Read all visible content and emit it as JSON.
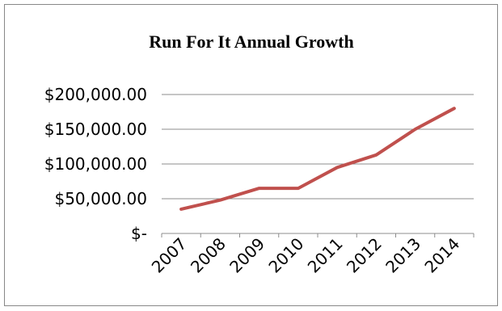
{
  "chart_data": {
    "type": "line",
    "title": "Run For It Annual Growth",
    "xlabel": "",
    "ylabel": "",
    "categories": [
      "2007",
      "2008",
      "2009",
      "2010",
      "2011",
      "2012",
      "2013",
      "2014"
    ],
    "y_tick_labels": [
      "$-",
      "$50,000.00",
      "$100,000.00",
      "$150,000.00",
      "$200,000.00"
    ],
    "y_tick_values": [
      0,
      50000,
      100000,
      150000,
      200000
    ],
    "ylim": [
      0,
      200000
    ],
    "grid": true,
    "legend": "none",
    "series": [
      {
        "values": [
          35000,
          48000,
          65000,
          65000,
          95000,
          113000,
          150000,
          180000
        ],
        "color": "#c0504d"
      }
    ]
  }
}
